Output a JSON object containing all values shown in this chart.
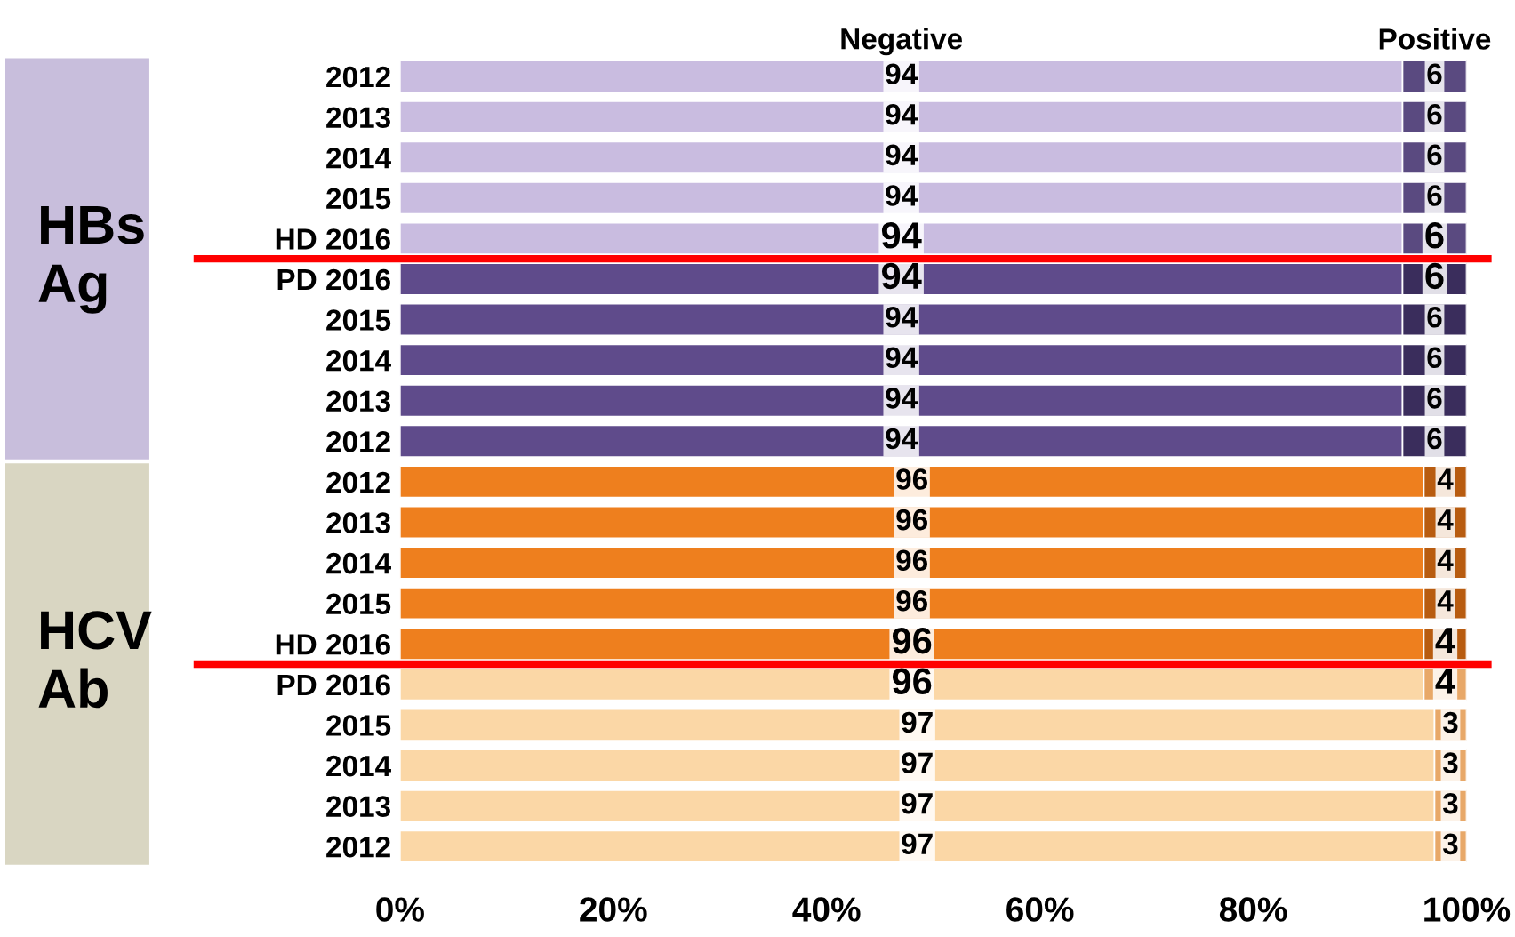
{
  "chart_data": {
    "type": "bar",
    "orientation": "horizontal",
    "stacked": true,
    "data_labels": true,
    "categories": [
      "2012",
      "2013",
      "2014",
      "2015",
      "HD 2016",
      "PD 2016",
      "2015",
      "2014",
      "2013",
      "2012",
      "2012",
      "2013",
      "2014",
      "2015",
      "HD 2016",
      "PD 2016",
      "2015",
      "2014",
      "2013",
      "2012"
    ],
    "series": [
      {
        "name": "Negative",
        "values": [
          94,
          94,
          94,
          94,
          94,
          94,
          94,
          94,
          94,
          94,
          96,
          96,
          96,
          96,
          96,
          96,
          97,
          97,
          97,
          97
        ],
        "colors": [
          "#c9bce0",
          "#c9bce0",
          "#c9bce0",
          "#c9bce0",
          "#c9bce0",
          "#5f4b8b",
          "#5f4b8b",
          "#5f4b8b",
          "#5f4b8b",
          "#5f4b8b",
          "#ee7f1e",
          "#ee7f1e",
          "#ee7f1e",
          "#ee7f1e",
          "#ee7f1e",
          "#fbd7a6",
          "#fbd7a6",
          "#fbd7a6",
          "#fbd7a6",
          "#fbd7a6"
        ]
      },
      {
        "name": "Positive",
        "values": [
          6,
          6,
          6,
          6,
          6,
          6,
          6,
          6,
          6,
          6,
          4,
          4,
          4,
          4,
          4,
          4,
          3,
          3,
          3,
          3
        ],
        "colors": [
          "#5a4a80",
          "#5a4a80",
          "#5a4a80",
          "#5a4a80",
          "#5a4a80",
          "#3a2d5c",
          "#3a2d5c",
          "#3a2d5c",
          "#3a2d5c",
          "#3a2d5c",
          "#b85c10",
          "#b85c10",
          "#b85c10",
          "#b85c10",
          "#b85c10",
          "#e8a868",
          "#e8a868",
          "#e8a868",
          "#e8a868",
          "#e8a868"
        ]
      }
    ],
    "xlim": [
      0,
      100
    ],
    "xticks": [
      {
        "value": 0,
        "label": "0%"
      },
      {
        "value": 20,
        "label": "20%"
      },
      {
        "value": 40,
        "label": "40%"
      },
      {
        "value": 60,
        "label": "60%"
      },
      {
        "value": 80,
        "label": "80%"
      },
      {
        "value": 100,
        "label": "100%"
      }
    ],
    "annotations": [
      "HBs\nAg",
      "HCV\nAb"
    ],
    "grid": false,
    "legend": false
  }
}
